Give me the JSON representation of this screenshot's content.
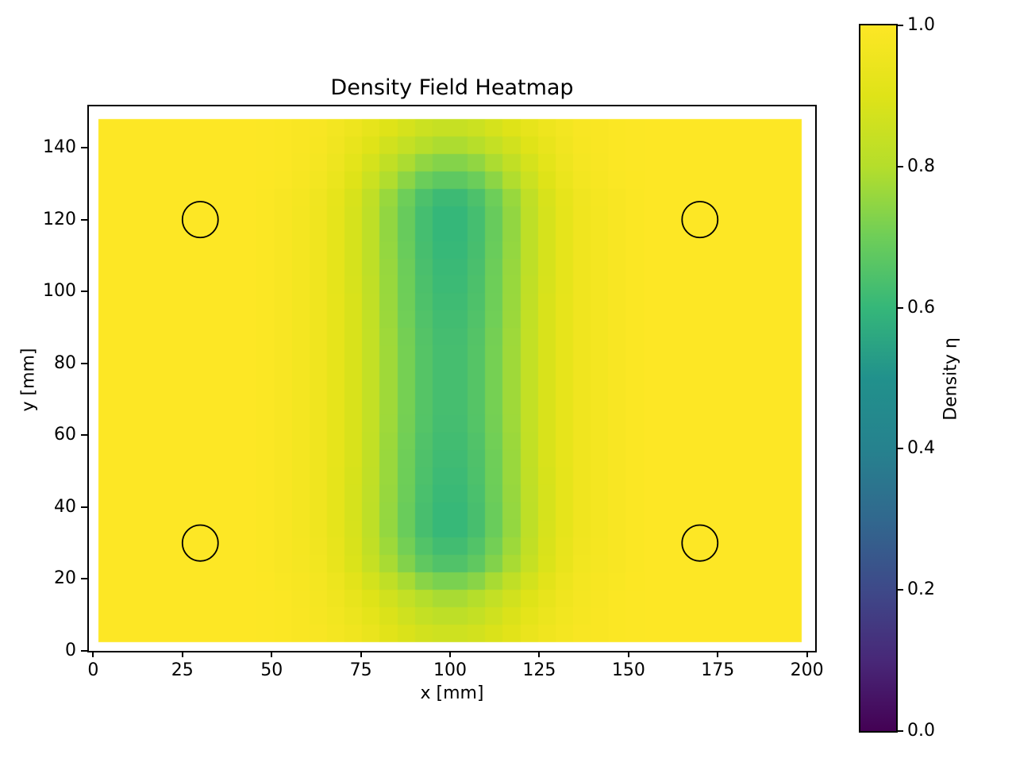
{
  "figure": {
    "background": "#ffffff"
  },
  "chart_data": {
    "type": "heatmap",
    "title": "Density Field Heatmap",
    "xlabel": "x [mm]",
    "ylabel": "y [mm]",
    "x_ticks": [
      0,
      25,
      50,
      75,
      100,
      125,
      150,
      175,
      200
    ],
    "y_ticks": [
      0,
      20,
      40,
      60,
      80,
      100,
      120,
      140
    ],
    "xlim": [
      -1.2,
      202.3
    ],
    "ylim": [
      0,
      151.5
    ],
    "mesh_extent": {
      "x": [
        1.5,
        198.5
      ],
      "y": [
        2.5,
        148.0
      ]
    },
    "colorbar": {
      "label": "Density η",
      "tick_labels": [
        "0.0",
        "0.2",
        "0.4",
        "0.6",
        "0.8",
        "1.0"
      ],
      "vmin": 0.0,
      "vmax": 1.0,
      "colormap": "viridis",
      "position": "right"
    },
    "colormap_stops": [
      [
        0.0,
        "#440154"
      ],
      [
        0.1,
        "#482878"
      ],
      [
        0.2,
        "#3e4989"
      ],
      [
        0.3,
        "#31688e"
      ],
      [
        0.4,
        "#26828e"
      ],
      [
        0.5,
        "#21918c"
      ],
      [
        0.6,
        "#35b779"
      ],
      [
        0.7,
        "#6ece58"
      ],
      [
        0.8,
        "#b5de2b"
      ],
      [
        0.9,
        "#dfe318"
      ],
      [
        1.0,
        "#fde725"
      ]
    ],
    "grid": {
      "x_centers": [
        5,
        15,
        25,
        35,
        45,
        55,
        65,
        75,
        85,
        95,
        105,
        115,
        125,
        135,
        145,
        155,
        165,
        175,
        185,
        195
      ],
      "y_centers": [
        5,
        15,
        25,
        35,
        45,
        55,
        65,
        75,
        85,
        95,
        105,
        115,
        125,
        135,
        145
      ],
      "values": [
        [
          1.0,
          1.0,
          1.0,
          1.0,
          1.0,
          0.99,
          0.98,
          0.95,
          0.9,
          0.86,
          0.86,
          0.9,
          0.95,
          0.98,
          0.99,
          1.0,
          1.0,
          1.0,
          1.0,
          1.0
        ],
        [
          1.0,
          1.0,
          1.0,
          1.0,
          1.0,
          0.99,
          0.97,
          0.92,
          0.85,
          0.78,
          0.78,
          0.85,
          0.92,
          0.97,
          0.99,
          1.0,
          1.0,
          1.0,
          1.0,
          1.0
        ],
        [
          1.0,
          1.0,
          1.0,
          1.0,
          1.0,
          0.98,
          0.96,
          0.87,
          0.75,
          0.64,
          0.64,
          0.75,
          0.87,
          0.96,
          0.98,
          1.0,
          1.0,
          1.0,
          1.0,
          1.0
        ],
        [
          1.0,
          1.0,
          1.0,
          1.0,
          1.0,
          0.98,
          0.95,
          0.86,
          0.72,
          0.6,
          0.6,
          0.72,
          0.86,
          0.95,
          0.98,
          1.0,
          1.0,
          1.0,
          1.0,
          1.0
        ],
        [
          1.0,
          1.0,
          1.0,
          1.0,
          1.0,
          0.98,
          0.95,
          0.86,
          0.73,
          0.61,
          0.61,
          0.73,
          0.86,
          0.95,
          0.98,
          1.0,
          1.0,
          1.0,
          1.0,
          1.0
        ],
        [
          1.0,
          1.0,
          1.0,
          1.0,
          1.0,
          0.98,
          0.95,
          0.87,
          0.73,
          0.62,
          0.62,
          0.73,
          0.87,
          0.95,
          0.98,
          1.0,
          1.0,
          1.0,
          1.0,
          1.0
        ],
        [
          1.0,
          1.0,
          1.0,
          1.0,
          1.0,
          0.98,
          0.95,
          0.87,
          0.74,
          0.63,
          0.63,
          0.74,
          0.87,
          0.95,
          0.98,
          1.0,
          1.0,
          1.0,
          1.0,
          1.0
        ],
        [
          1.0,
          1.0,
          1.0,
          1.0,
          1.0,
          0.98,
          0.95,
          0.87,
          0.74,
          0.63,
          0.63,
          0.74,
          0.87,
          0.95,
          0.98,
          1.0,
          1.0,
          1.0,
          1.0,
          1.0
        ],
        [
          1.0,
          1.0,
          1.0,
          1.0,
          1.0,
          0.98,
          0.95,
          0.87,
          0.74,
          0.63,
          0.63,
          0.74,
          0.87,
          0.95,
          0.98,
          1.0,
          1.0,
          1.0,
          1.0,
          1.0
        ],
        [
          1.0,
          1.0,
          1.0,
          1.0,
          1.0,
          0.98,
          0.95,
          0.87,
          0.73,
          0.62,
          0.62,
          0.73,
          0.87,
          0.95,
          0.98,
          1.0,
          1.0,
          1.0,
          1.0,
          1.0
        ],
        [
          1.0,
          1.0,
          1.0,
          1.0,
          1.0,
          0.98,
          0.95,
          0.86,
          0.73,
          0.61,
          0.61,
          0.73,
          0.86,
          0.95,
          0.98,
          1.0,
          1.0,
          1.0,
          1.0,
          1.0
        ],
        [
          1.0,
          1.0,
          1.0,
          1.0,
          1.0,
          0.98,
          0.95,
          0.86,
          0.72,
          0.6,
          0.6,
          0.72,
          0.86,
          0.95,
          0.98,
          1.0,
          1.0,
          1.0,
          1.0,
          1.0
        ],
        [
          1.0,
          1.0,
          1.0,
          1.0,
          1.0,
          0.98,
          0.95,
          0.86,
          0.72,
          0.6,
          0.6,
          0.72,
          0.86,
          0.95,
          0.98,
          1.0,
          1.0,
          1.0,
          1.0,
          1.0
        ],
        [
          1.0,
          1.0,
          1.0,
          1.0,
          1.0,
          0.99,
          0.97,
          0.9,
          0.8,
          0.72,
          0.72,
          0.8,
          0.9,
          0.97,
          0.99,
          1.0,
          1.0,
          1.0,
          1.0,
          1.0
        ],
        [
          1.0,
          1.0,
          1.0,
          1.0,
          1.0,
          0.99,
          0.98,
          0.94,
          0.89,
          0.84,
          0.84,
          0.89,
          0.94,
          0.98,
          0.99,
          1.0,
          1.0,
          1.0,
          1.0,
          1.0
        ]
      ]
    },
    "holes": [
      {
        "x": 30,
        "y": 120,
        "r": 5
      },
      {
        "x": 170,
        "y": 120,
        "r": 5
      },
      {
        "x": 30,
        "y": 30,
        "r": 5
      },
      {
        "x": 170,
        "y": 30,
        "r": 5
      }
    ]
  }
}
